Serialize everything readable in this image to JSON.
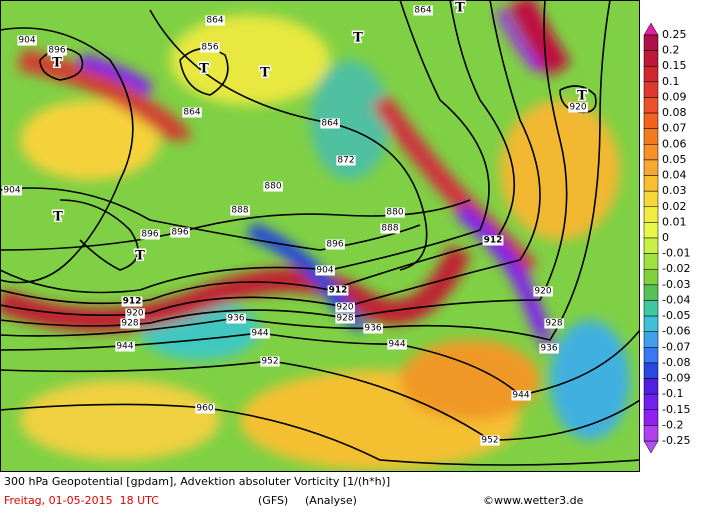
{
  "colorbar": {
    "labels": [
      "0.25",
      "0.2",
      "0.15",
      "0.1",
      "0.09",
      "0.08",
      "0.07",
      "0.06",
      "0.05",
      "0.04",
      "0.03",
      "0.02",
      "0.01",
      "0",
      "-0.01",
      "-0.02",
      "-0.03",
      "-0.04",
      "-0.05",
      "-0.06",
      "-0.07",
      "-0.08",
      "-0.09",
      "-0.1",
      "-0.15",
      "-0.2",
      "-0.25"
    ]
  },
  "contour_labels": [
    "904",
    "896",
    "864",
    "856",
    "864",
    "864",
    "872",
    "880",
    "888",
    "880",
    "888",
    "896",
    "896",
    "904",
    "896",
    "904",
    "912",
    "920",
    "928",
    "936",
    "944",
    "952",
    "960",
    "912",
    "920",
    "928",
    "936",
    "944",
    "944",
    "952",
    "912",
    "920",
    "928",
    "936",
    "864",
    "920",
    "944"
  ],
  "pressure_systems": [
    "T",
    "T",
    "T",
    "T",
    "T",
    "T",
    "T",
    "T"
  ],
  "footer": {
    "title": "300 hPa Geopotential [gpdam], Advektion absoluter Vorticity [1/(h*h)]",
    "date": "Freitag, 01-05-2015  18 UTC",
    "model": "(GFS)",
    "analysis": "(Analyse)",
    "credit": "©www.wetter3.de"
  }
}
